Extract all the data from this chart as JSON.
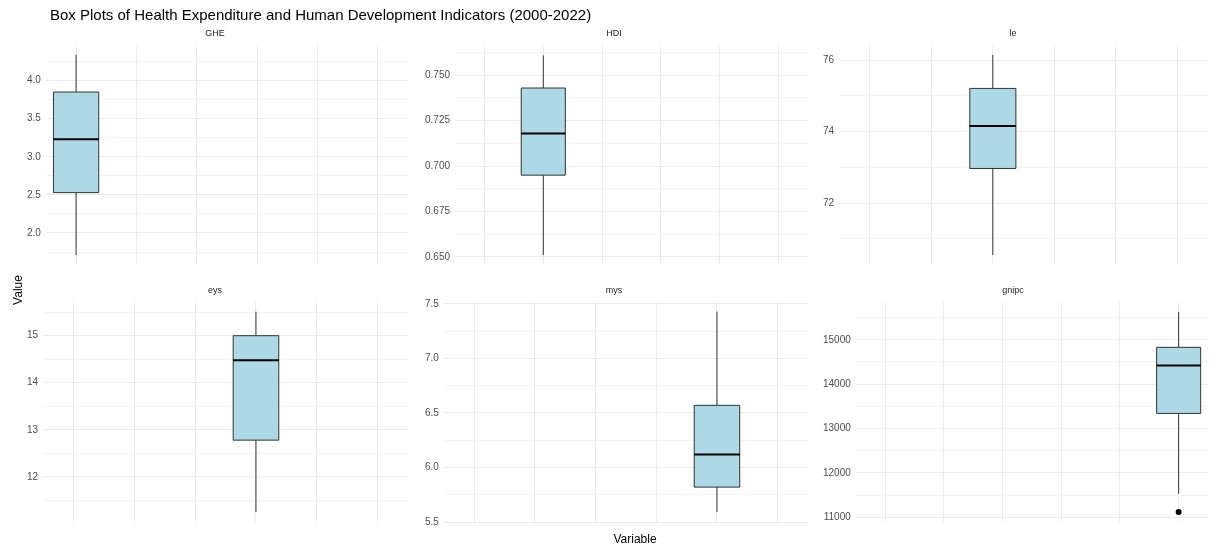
{
  "chart_data": [
    {
      "type": "box",
      "title": "Box Plots of Health Expenditure and Human Development Indicators (2000-2022)",
      "subtitle": "GHE",
      "ylabel": "Value",
      "categories": [
        null,
        null,
        null,
        null,
        null,
        null
      ],
      "color": "#add8e6",
      "grid": true,
      "tick_labels": "y",
      "boxes": [
        {
          "low": 1.71,
          "q1": 2.53,
          "median": 3.23,
          "q3": 3.85,
          "high": 4.34
        },
        null,
        null,
        null,
        null,
        null
      ],
      "ylim": [
        1.58,
        4.47
      ],
      "yticks": [
        {
          "value": 1.75,
          "label": null
        },
        {
          "value": 2,
          "label": "2.0"
        },
        {
          "value": 2.25,
          "label": null
        },
        {
          "value": 2.5,
          "label": "2.5"
        },
        {
          "value": 2.75,
          "label": null
        },
        {
          "value": 3,
          "label": "3.0"
        },
        {
          "value": 3.25,
          "label": null
        },
        {
          "value": 3.5,
          "label": "3.5"
        },
        {
          "value": 3.75,
          "label": null
        },
        {
          "value": 4,
          "label": "4.0"
        },
        {
          "value": 4.25,
          "label": null
        }
      ]
    },
    {
      "type": "box",
      "subtitle": "HDI",
      "categories": [
        null,
        null,
        null,
        null,
        null,
        null
      ],
      "color": "#add8e6",
      "grid": true,
      "tick_labels": "y",
      "boxes": [
        null,
        {
          "low": 0.651,
          "q1": 0.695,
          "median": 0.718,
          "q3": 0.743,
          "high": 0.761
        },
        null,
        null,
        null,
        null
      ],
      "ylim": [
        0.6455,
        0.7668
      ],
      "yticks": [
        {
          "value": 0.65,
          "label": "0.650"
        },
        {
          "value": 0.6625,
          "label": null
        },
        {
          "value": 0.675,
          "label": "0.675"
        },
        {
          "value": 0.6875,
          "label": null
        },
        {
          "value": 0.7,
          "label": "0.700"
        },
        {
          "value": 0.7125,
          "label": null
        },
        {
          "value": 0.725,
          "label": "0.725"
        },
        {
          "value": 0.7375,
          "label": null
        },
        {
          "value": 0.75,
          "label": "0.750"
        },
        {
          "value": 0.7625,
          "label": null
        }
      ]
    },
    {
      "type": "box",
      "subtitle": "le",
      "categories": [
        null,
        null,
        null,
        null,
        null,
        null
      ],
      "color": "#add8e6",
      "grid": true,
      "tick_labels": "y",
      "boxes": [
        null,
        null,
        {
          "low": 70.55,
          "q1": 72.97,
          "median": 74.16,
          "q3": 75.21,
          "high": 76.15
        },
        null,
        null,
        null
      ],
      "ylim": [
        70.27,
        76.43
      ],
      "yticks": [
        {
          "value": 71,
          "label": null
        },
        72,
        {
          "value": 73,
          "label": null
        },
        74,
        {
          "value": 75,
          "label": null
        },
        76
      ]
    },
    {
      "type": "box",
      "subtitle": "eys",
      "categories": [
        null,
        null,
        null,
        null,
        null,
        null
      ],
      "color": "#add8e6",
      "grid": true,
      "tick_labels": "y",
      "boxes": [
        null,
        null,
        null,
        {
          "low": 11.25,
          "q1": 12.78,
          "median": 14.48,
          "q3": 15.0,
          "high": 15.51
        },
        null,
        null
      ],
      "ylim": [
        11.04,
        15.72
      ],
      "yticks": [
        {
          "value": 11.5,
          "label": null
        },
        12,
        {
          "value": 12.5,
          "label": null
        },
        13,
        {
          "value": 13.5,
          "label": null
        },
        14,
        {
          "value": 14.5,
          "label": null
        },
        15,
        {
          "value": 15.5,
          "label": null
        }
      ]
    },
    {
      "type": "box",
      "subtitle": "mys",
      "xlabel": "Variable",
      "categories": [
        null,
        null,
        null,
        null,
        null,
        null
      ],
      "color": "#add8e6",
      "grid": true,
      "tick_labels": "y",
      "boxes": [
        null,
        null,
        null,
        null,
        {
          "low": 5.59,
          "q1": 5.82,
          "median": 6.12,
          "q3": 6.57,
          "high": 7.43
        },
        null
      ],
      "ylim": [
        5.5,
        7.52
      ],
      "yticks": [
        {
          "value": 5.5,
          "label": "5.5"
        },
        {
          "value": 5.75,
          "label": null
        },
        {
          "value": 6,
          "label": "6.0"
        },
        {
          "value": 6.25,
          "label": null
        },
        {
          "value": 6.5,
          "label": "6.5"
        },
        {
          "value": 6.75,
          "label": null
        },
        {
          "value": 7,
          "label": "7.0"
        },
        {
          "value": 7.25,
          "label": null
        },
        {
          "value": 7.5,
          "label": "7.5"
        }
      ]
    },
    {
      "type": "box",
      "subtitle": "gnipc",
      "categories": [
        null,
        null,
        null,
        null,
        null,
        null
      ],
      "color": "#add8e6",
      "grid": true,
      "tick_labels": "y",
      "boxes": [
        null,
        null,
        null,
        null,
        null,
        {
          "low": 11530,
          "q1": 13340,
          "median": 14420,
          "q3": 14830,
          "high": 15630,
          "outliers": [
            11120
          ]
        }
      ],
      "ylim": [
        10895,
        15855
      ],
      "yticks": [
        11000,
        {
          "value": 11500,
          "label": null
        },
        12000,
        {
          "value": 12500,
          "label": null
        },
        13000,
        {
          "value": 13500,
          "label": null
        },
        14000,
        {
          "value": 14500,
          "label": null
        },
        15000,
        {
          "value": 15500,
          "label": null
        }
      ]
    }
  ]
}
